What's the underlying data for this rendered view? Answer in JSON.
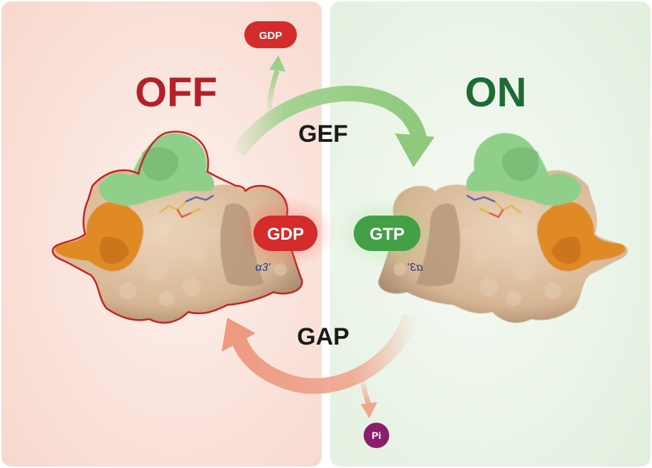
{
  "off_panel": {
    "state_label": "OFF",
    "bound_nucleotide": "GDP",
    "helix_label": "α3'",
    "panel_color": "#f8d8cf",
    "text_color": "#b4202a"
  },
  "on_panel": {
    "state_label": "ON",
    "bound_nucleotide": "GTP",
    "helix_label": "α3'",
    "panel_color": "#e5f1e2",
    "text_color": "#1d6b35"
  },
  "gef_cycle": {
    "enzyme_label": "GEF",
    "released_label": "GDP",
    "arrow_color": "#9bd08a"
  },
  "gap_cycle": {
    "enzyme_label": "GAP",
    "released_label": "Pi",
    "arrow_color": "#f0a58f"
  },
  "colors": {
    "protein_body": "#d9b899",
    "switch_1": "#8fcf8a",
    "switch_2": "#e08a28",
    "gdp_pill": "#d42b2b",
    "gtp_pill": "#43a047",
    "pi_pill": "#8b1e6c"
  }
}
